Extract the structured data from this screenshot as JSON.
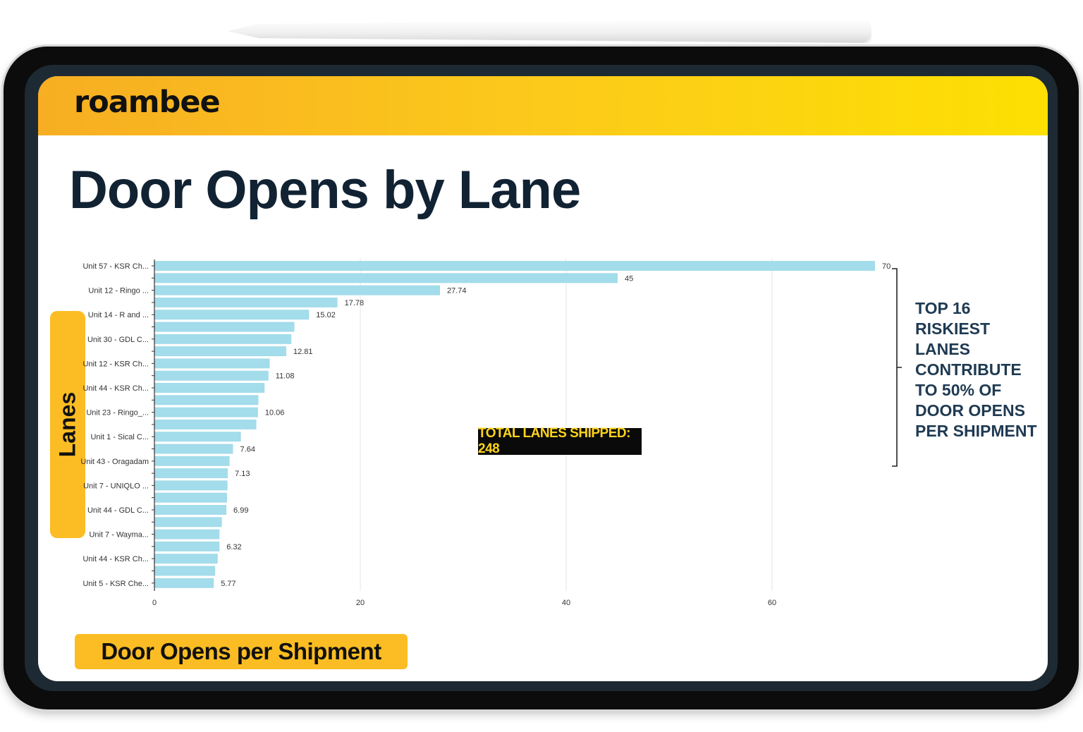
{
  "brand": {
    "logo_text": "roambee",
    "header_colors": [
      "#f7ae22",
      "#fde002"
    ]
  },
  "page": {
    "title": "Door Opens by Lane"
  },
  "y_badge": {
    "label": "Lanes"
  },
  "x_badge": {
    "label": "Door Opens per Shipment"
  },
  "callout": {
    "lines": [
      "TOP 16",
      "RISKIEST",
      "LANES",
      "CONTRIBUTE",
      "TO 50% OF",
      "DOOR OPENS",
      "PER SHIPMENT"
    ]
  },
  "total_box": {
    "label": "TOTAL LANES SHIPPED: 248"
  },
  "chart_data": {
    "type": "bar",
    "orientation": "horizontal",
    "xlabel": "Door Opens per Shipment",
    "ylabel": "Lanes",
    "xlim": [
      0,
      70
    ],
    "x_ticks": [
      0,
      20,
      40,
      60
    ],
    "grid": true,
    "bar_color": "#a3dcea",
    "categories": [
      "Unit 57 - KSR Ch...",
      "",
      "Unit 12 - Ringo ...",
      "",
      "Unit 14 - R and ...",
      "",
      "Unit 30 - GDL C...",
      "",
      "Unit 12 - KSR Ch...",
      "",
      "Unit 44 - KSR Ch...",
      "",
      "Unit 23 - Ringo_...",
      "",
      "Unit 1 - Sical C...",
      "",
      "Unit 43 - Oragadam",
      "",
      "Unit 7 - UNIQLO ...",
      "",
      "Unit 44 - GDL C...",
      "",
      "Unit 7 - Wayma...",
      "",
      "Unit 44 - KSR Ch...",
      "",
      "Unit 5 - KSR Che..."
    ],
    "values": [
      70,
      45,
      27.74,
      17.78,
      15.02,
      13.6,
      13.3,
      12.81,
      11.2,
      11.08,
      10.7,
      10.1,
      10.06,
      9.9,
      8.4,
      7.64,
      7.3,
      7.13,
      7.1,
      7.05,
      6.99,
      6.55,
      6.32,
      6.32,
      6.15,
      5.9,
      5.77
    ],
    "data_labels": [
      "70",
      "45",
      "27.74",
      "17.78",
      "15.02",
      "",
      "",
      "12.81",
      "",
      "11.08",
      "",
      "",
      "10.06",
      "",
      "",
      "7.64",
      "",
      "7.13",
      "",
      "",
      "6.99",
      "",
      "",
      "6.32",
      "",
      "",
      "5.77"
    ]
  }
}
